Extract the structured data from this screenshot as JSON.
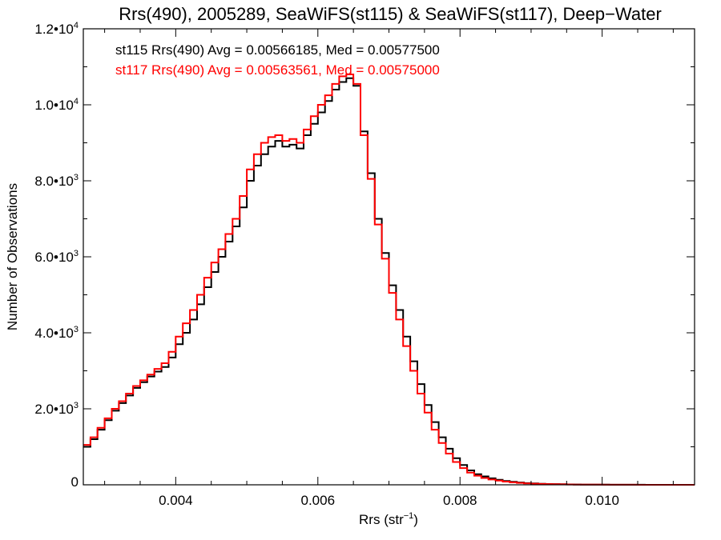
{
  "chart_data": {
    "type": "line",
    "step": true,
    "title": "Rrs(490), 2005289, SeaWiFS(st115) & SeaWiFS(st117), Deep−Water",
    "xlabel": "Rrs (str",
    "xlabel_sup": "−1",
    "xlabel_close": ")",
    "ylabel": "Number of Observations",
    "xlim": [
      0.0027,
      0.0113
    ],
    "ylim": [
      0,
      12000
    ],
    "x_ticks": [
      {
        "value": 0.004,
        "label": "0.004"
      },
      {
        "value": 0.006,
        "label": "0.006"
      },
      {
        "value": 0.008,
        "label": "0.008"
      },
      {
        "value": 0.01,
        "label": "0.010"
      }
    ],
    "y_ticks": [
      {
        "value": 0,
        "mantissa": "0",
        "exp": ""
      },
      {
        "value": 2000,
        "mantissa": "2.0•10",
        "exp": "3"
      },
      {
        "value": 4000,
        "mantissa": "4.0•10",
        "exp": "3"
      },
      {
        "value": 6000,
        "mantissa": "6.0•10",
        "exp": "3"
      },
      {
        "value": 8000,
        "mantissa": "8.0•10",
        "exp": "3"
      },
      {
        "value": 10000,
        "mantissa": "1.0•10",
        "exp": "4"
      },
      {
        "value": 12000,
        "mantissa": "1.2•10",
        "exp": "4"
      }
    ],
    "annotations": [
      {
        "text": "st115 Rrs(490) Avg = 0.00566185, Med = 0.00577500",
        "color": "#000000"
      },
      {
        "text": "st117 Rrs(490) Avg = 0.00563561, Med = 0.00575000",
        "color": "#ff0000"
      }
    ],
    "series": [
      {
        "color": "#000000",
        "x": [
          0.0027,
          0.0028,
          0.0029,
          0.003,
          0.0031,
          0.0032,
          0.0033,
          0.0034,
          0.0035,
          0.0036,
          0.0037,
          0.0038,
          0.0039,
          0.004,
          0.0041,
          0.0042,
          0.0043,
          0.0044,
          0.0045,
          0.0046,
          0.0047,
          0.0048,
          0.0049,
          0.005,
          0.0051,
          0.0052,
          0.0053,
          0.0054,
          0.0055,
          0.0056,
          0.0057,
          0.0058,
          0.0059,
          0.006,
          0.0061,
          0.0062,
          0.0063,
          0.0064,
          0.0065,
          0.0066,
          0.0067,
          0.0068,
          0.0069,
          0.007,
          0.0071,
          0.0072,
          0.0073,
          0.0074,
          0.0075,
          0.0076,
          0.0077,
          0.0078,
          0.0079,
          0.008,
          0.0081,
          0.0082,
          0.0083,
          0.0084,
          0.0085,
          0.0086,
          0.0087,
          0.0088,
          0.0089,
          0.009,
          0.0091,
          0.0092,
          0.0093,
          0.0094,
          0.0095,
          0.0096,
          0.0097,
          0.0098,
          0.0099,
          0.01,
          0.0101,
          0.0102,
          0.0103,
          0.0104,
          0.0105,
          0.0106,
          0.0107,
          0.0108,
          0.0109,
          0.011,
          0.0111,
          0.0112,
          0.0113
        ],
        "y": [
          1000,
          1200,
          1450,
          1700,
          1950,
          2150,
          2350,
          2550,
          2700,
          2850,
          2980,
          3100,
          3350,
          3700,
          4000,
          4350,
          4750,
          5200,
          5600,
          6000,
          6400,
          6800,
          7300,
          8000,
          8400,
          8700,
          8900,
          9050,
          8900,
          8950,
          8850,
          9200,
          9500,
          9800,
          10100,
          10400,
          10600,
          10700,
          10500,
          9300,
          8200,
          7000,
          6100,
          5250,
          4600,
          3900,
          3250,
          2650,
          2100,
          1650,
          1250,
          950,
          700,
          520,
          380,
          280,
          220,
          170,
          130,
          100,
          80,
          60,
          45,
          35,
          28,
          22,
          18,
          14,
          11,
          9,
          7,
          6,
          5,
          4,
          3,
          3,
          2,
          2,
          2,
          1,
          1,
          1,
          1,
          1,
          0,
          0,
          0
        ]
      },
      {
        "color": "#ff0000",
        "x": [
          0.0027,
          0.0028,
          0.0029,
          0.003,
          0.0031,
          0.0032,
          0.0033,
          0.0034,
          0.0035,
          0.0036,
          0.0037,
          0.0038,
          0.0039,
          0.004,
          0.0041,
          0.0042,
          0.0043,
          0.0044,
          0.0045,
          0.0046,
          0.0047,
          0.0048,
          0.0049,
          0.005,
          0.0051,
          0.0052,
          0.0053,
          0.0054,
          0.0055,
          0.0056,
          0.0057,
          0.0058,
          0.0059,
          0.006,
          0.0061,
          0.0062,
          0.0063,
          0.0064,
          0.0065,
          0.0066,
          0.0067,
          0.0068,
          0.0069,
          0.007,
          0.0071,
          0.0072,
          0.0073,
          0.0074,
          0.0075,
          0.0076,
          0.0077,
          0.0078,
          0.0079,
          0.008,
          0.0081,
          0.0082,
          0.0083,
          0.0084,
          0.0085,
          0.0086,
          0.0087,
          0.0088,
          0.0089,
          0.009,
          0.0091,
          0.0092,
          0.0093,
          0.0094,
          0.0095,
          0.0096,
          0.0097,
          0.0098,
          0.0099,
          0.01,
          0.0101,
          0.0102,
          0.0103,
          0.0104,
          0.0105,
          0.0106,
          0.0107,
          0.0108,
          0.0109,
          0.011,
          0.0111,
          0.0112,
          0.0113
        ],
        "y": [
          1050,
          1250,
          1500,
          1750,
          2000,
          2200,
          2400,
          2600,
          2750,
          2900,
          3050,
          3200,
          3500,
          3900,
          4250,
          4600,
          5000,
          5450,
          5850,
          6200,
          6600,
          7000,
          7600,
          8300,
          8700,
          9000,
          9150,
          9200,
          9050,
          9100,
          9000,
          9350,
          9700,
          10000,
          10250,
          10550,
          10750,
          10800,
          10550,
          9200,
          8050,
          6850,
          5950,
          5050,
          4350,
          3650,
          3000,
          2400,
          1900,
          1450,
          1100,
          820,
          600,
          440,
          320,
          240,
          180,
          140,
          110,
          85,
          65,
          50,
          38,
          30,
          24,
          19,
          15,
          12,
          9,
          7,
          6,
          5,
          4,
          3,
          3,
          2,
          2,
          2,
          1,
          1,
          1,
          1,
          1,
          0,
          0,
          0,
          0
        ]
      }
    ]
  }
}
